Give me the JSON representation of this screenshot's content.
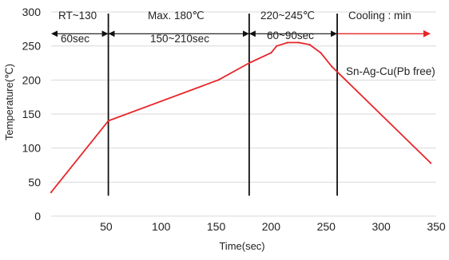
{
  "chart_data": {
    "type": "line",
    "title": "",
    "xlabel": "Time(sec)",
    "ylabel": "Temperature(℃)",
    "xlim": [
      0,
      350
    ],
    "ylim": [
      0,
      300
    ],
    "x_ticks": [
      50,
      100,
      150,
      200,
      250,
      300,
      350
    ],
    "y_ticks": [
      0,
      50,
      100,
      150,
      200,
      250,
      300
    ],
    "grid": "horizontal",
    "line_color": "#e8262a",
    "series": [
      {
        "name": "Sn-Ag-Cu(Pb free)",
        "x": [
          0,
          52,
          152,
          180,
          200,
          205,
          215,
          225,
          235,
          245,
          255,
          345
        ],
        "y": [
          35,
          140,
          200,
          225,
          240,
          250,
          255,
          255,
          252,
          240,
          220,
          78
        ]
      }
    ],
    "zone_boundaries_x": [
      52,
      180,
      260
    ],
    "annotations": {
      "zone1_top": "RT~130",
      "zone1_bottom": "60sec",
      "zone2_top": "Max. 180℃",
      "zone2_bottom": "150~210sec",
      "zone3_top": "220~245℃",
      "zone3_bottom": "60~90sec",
      "zone4_top": "Cooling : min",
      "series_label": "Sn-Ag-Cu(Pb free)"
    }
  }
}
